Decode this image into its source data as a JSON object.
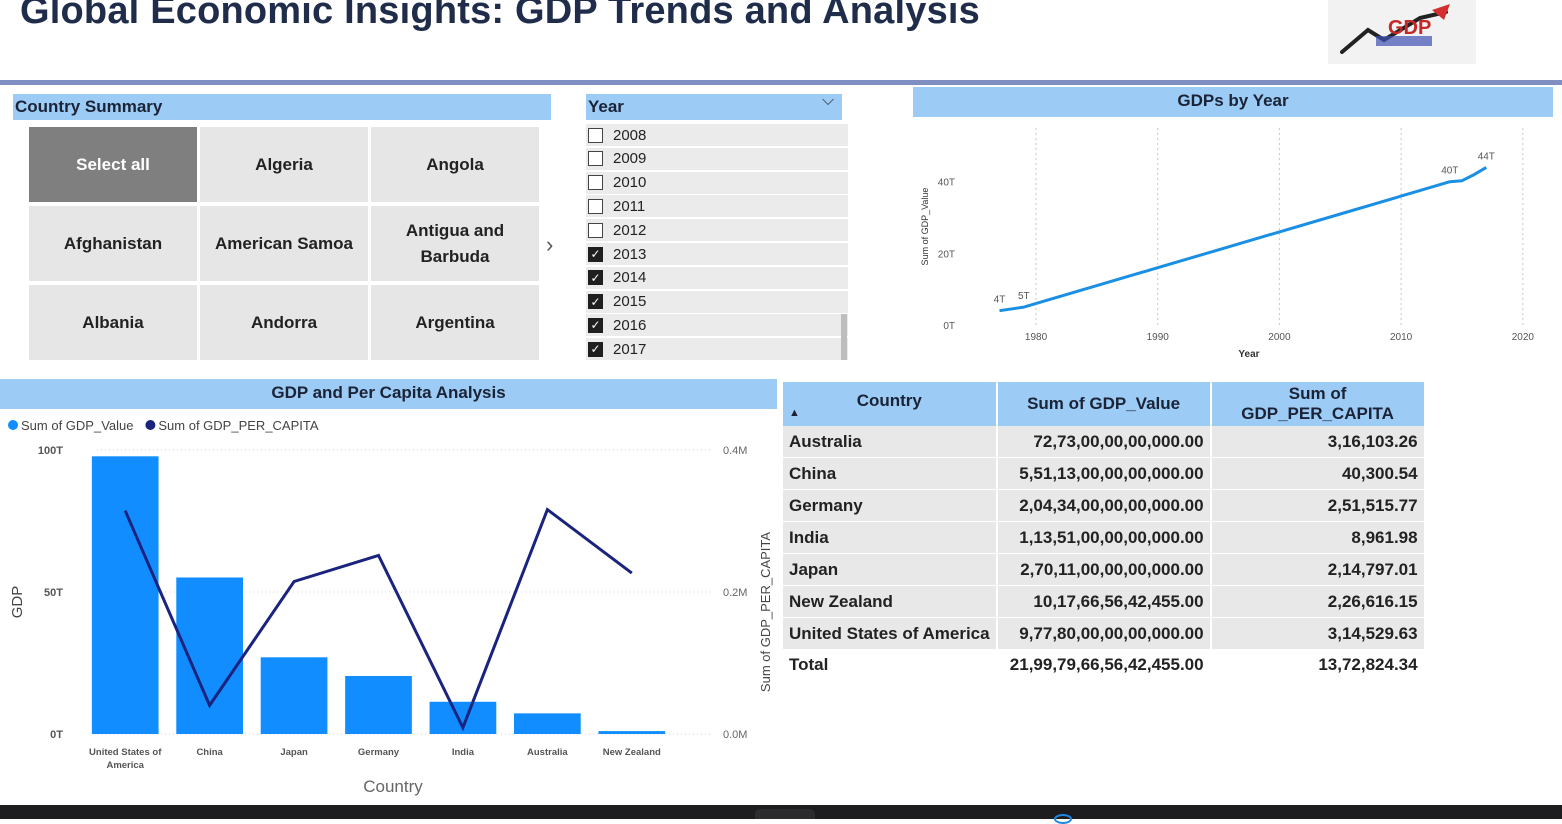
{
  "page": {
    "title": "Global Economic Insights: GDP Trends and Analysis",
    "logo_text": "GDP"
  },
  "country_slicer": {
    "title": "Country Summary",
    "tiles": [
      "Select all",
      "Algeria",
      "Angola",
      "Afghanistan",
      "American Samoa",
      "Antigua and Barbuda",
      "Albania",
      "Andorra",
      "Argentina"
    ],
    "selected_tile": "Select all"
  },
  "year_slicer": {
    "title": "Year",
    "items": [
      {
        "label": "2008",
        "checked": false
      },
      {
        "label": "2009",
        "checked": false
      },
      {
        "label": "2010",
        "checked": false
      },
      {
        "label": "2011",
        "checked": false
      },
      {
        "label": "2012",
        "checked": false
      },
      {
        "label": "2013",
        "checked": true
      },
      {
        "label": "2014",
        "checked": true
      },
      {
        "label": "2015",
        "checked": true
      },
      {
        "label": "2016",
        "checked": true
      },
      {
        "label": "2017",
        "checked": true
      }
    ]
  },
  "chart_data": [
    {
      "type": "line",
      "title": "GDPs by Year",
      "xlabel": "Year",
      "ylabel": "Sum of GDP_Value",
      "x_ticks": [
        "1980",
        "1990",
        "2000",
        "2010",
        "2020"
      ],
      "y_ticks": [
        "0T",
        "20T",
        "40T"
      ],
      "xlim": [
        1974,
        2021
      ],
      "ylim": [
        0,
        44
      ],
      "grid": "vertical dotted",
      "color": "#1a8fe3",
      "series": [
        {
          "x": [
            1977,
            1979,
            1985,
            1990,
            1995,
            2000,
            2005,
            2010,
            2013,
            2014,
            2015,
            2016,
            2017
          ],
          "y": [
            4,
            5,
            11,
            16,
            21,
            26,
            31,
            36,
            39,
            40,
            40.3,
            42,
            44
          ]
        }
      ],
      "point_labels": [
        {
          "x": 1977,
          "y": 4,
          "text": "4T"
        },
        {
          "x": 1979,
          "y": 5,
          "text": "5T"
        },
        {
          "x": 2014,
          "y": 40,
          "text": "40T"
        },
        {
          "x": 2017,
          "y": 44,
          "text": "44T"
        }
      ]
    },
    {
      "type": "bar",
      "title": "GDP and Per Capita Analysis",
      "xlabel": "Country",
      "ylabel": "GDP",
      "ylabel_right": "Sum of GDP_PER_CAPITA",
      "categories": [
        "United States of America",
        "China",
        "Japan",
        "Germany",
        "India",
        "Australia",
        "New Zealand"
      ],
      "y_ticks": [
        "0T",
        "50T",
        "100T"
      ],
      "y_ticks_right": [
        "0.0M",
        "0.2M",
        "0.4M"
      ],
      "ylim": [
        0,
        100
      ],
      "ylim_right": [
        0,
        0.4
      ],
      "legend": "top-left",
      "series": [
        {
          "name": "Sum of GDP_Value",
          "color": "#118dff",
          "values": [
            97.78,
            55.11,
            27.01,
            20.43,
            11.35,
            7.27,
            1.02
          ]
        },
        {
          "name": "Sum of GDP_PER_CAPITA",
          "color": "#1a237e",
          "axis": "right",
          "values": [
            0.3145,
            0.0403,
            0.2148,
            0.2515,
            0.009,
            0.3161,
            0.2266
          ]
        }
      ]
    },
    {
      "type": "table",
      "columns": [
        "Country",
        "Sum of GDP_Value",
        "Sum of GDP_PER_CAPITA"
      ],
      "sort": "Country ascending",
      "rows": [
        [
          "Australia",
          "72,73,00,00,00,000.00",
          "3,16,103.26"
        ],
        [
          "China",
          "5,51,13,00,00,00,000.00",
          "40,300.54"
        ],
        [
          "Germany",
          "2,04,34,00,00,00,000.00",
          "2,51,515.77"
        ],
        [
          "India",
          "1,13,51,00,00,00,000.00",
          "8,961.98"
        ],
        [
          "Japan",
          "2,70,11,00,00,00,000.00",
          "2,14,797.01"
        ],
        [
          "New Zealand",
          "10,17,66,56,42,455.00",
          "2,26,616.15"
        ],
        [
          "United States of America",
          "9,77,80,00,00,00,000.00",
          "3,14,529.63"
        ]
      ],
      "total": [
        "Total",
        "21,99,79,66,56,42,455.00",
        "13,72,824.34"
      ]
    }
  ]
}
